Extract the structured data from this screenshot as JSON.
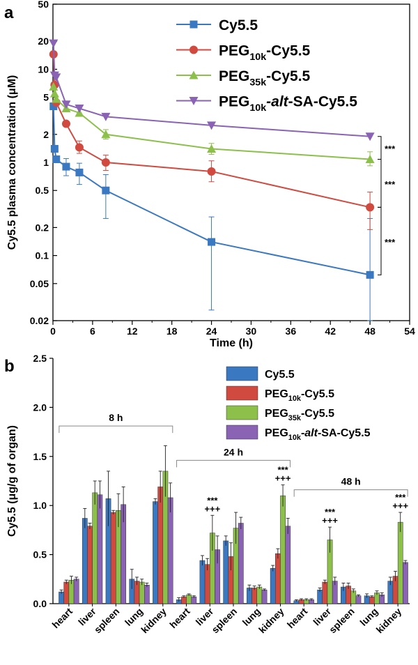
{
  "colors": {
    "cy55": "#3a78c2",
    "peg10k": "#d04a3f",
    "peg35k": "#8cc04a",
    "alt": "#8a63b4"
  },
  "panel_a": {
    "label": "a"
  },
  "panel_b": {
    "label": "b"
  },
  "chart_data": [
    {
      "type": "line",
      "panel": "a",
      "xlabel": "Time (h)",
      "ylabel": "Cy5.5 plasma concentration (μM)",
      "xlim": [
        0,
        54
      ],
      "ylim": [
        0.02,
        50
      ],
      "yscale": "log",
      "xticks": [
        0,
        6,
        12,
        18,
        24,
        30,
        36,
        42,
        48,
        54
      ],
      "yticks": [
        0.02,
        0.05,
        0.1,
        0.2,
        0.5,
        1,
        2,
        5,
        10,
        20,
        50
      ],
      "ytick_labels": [
        "0.02",
        "0.05",
        "0.1",
        "0.2",
        "0.5",
        "1",
        "2",
        "5",
        "10",
        "20",
        "50"
      ],
      "legend_position": "top-right",
      "legend": [
        {
          "key": "cy55",
          "base": "Cy5.5",
          "sub": "",
          "italic": "",
          "rest": ""
        },
        {
          "key": "peg10k",
          "base": "PEG",
          "sub": "10k",
          "italic": "",
          "rest": "-Cy5.5"
        },
        {
          "key": "peg35k",
          "base": "PEG",
          "sub": "35k",
          "italic": "",
          "rest": "-Cy5.5"
        },
        {
          "key": "alt",
          "base": "PEG",
          "sub": "10k",
          "italic": "-alt",
          "rest": "-SA-Cy5.5"
        }
      ],
      "series": [
        {
          "key": "cy55",
          "marker": "square",
          "x": [
            0.083,
            0.25,
            0.5,
            2,
            4,
            8,
            24,
            48
          ],
          "y": [
            4.0,
            1.4,
            1.08,
            0.9,
            0.78,
            0.5,
            0.14,
            0.062
          ],
          "err_lo": [
            0,
            0,
            0,
            0.72,
            0.58,
            0.25,
            0.026,
            0.02
          ],
          "err_hi": [
            0,
            0,
            0,
            1.1,
            0.98,
            0.74,
            0.26,
            0.25
          ]
        },
        {
          "key": "peg10k",
          "marker": "circle",
          "x": [
            0.083,
            0.25,
            0.5,
            2,
            4,
            8,
            24,
            48
          ],
          "y": [
            14.5,
            6.8,
            4.4,
            2.6,
            1.45,
            1.0,
            0.8,
            0.33
          ],
          "err_lo": [
            0,
            0,
            0,
            0,
            1.25,
            0.82,
            0.62,
            0.19
          ],
          "err_hi": [
            0,
            0,
            0,
            0,
            1.7,
            1.2,
            1.04,
            0.48
          ]
        },
        {
          "key": "peg35k",
          "marker": "triangle-up",
          "x": [
            0.083,
            0.25,
            0.5,
            2,
            4,
            8,
            24,
            48
          ],
          "y": [
            6.5,
            5.5,
            4.8,
            3.8,
            3.4,
            2.0,
            1.4,
            1.08
          ],
          "err_lo": [
            0,
            0,
            0,
            0,
            0,
            1.78,
            1.22,
            0.92
          ],
          "err_hi": [
            0,
            0,
            0,
            0,
            0,
            2.25,
            1.6,
            1.3
          ]
        },
        {
          "key": "alt",
          "marker": "triangle-down",
          "x": [
            0.083,
            0.25,
            0.5,
            2,
            4,
            8,
            24,
            48
          ],
          "y": [
            19,
            8.6,
            8.2,
            4.2,
            3.8,
            3.1,
            2.5,
            1.9
          ],
          "err_lo": [
            0,
            0,
            0,
            0,
            0,
            0,
            0,
            0
          ],
          "err_hi": [
            0,
            0,
            0,
            0,
            0,
            0,
            0,
            0
          ]
        }
      ],
      "significance": [
        {
          "from": 1.9,
          "to": 1.08,
          "label": "***"
        },
        {
          "from": 1.08,
          "to": 0.33,
          "label": "***"
        },
        {
          "from": 0.33,
          "to": 0.062,
          "label": "***"
        }
      ]
    },
    {
      "type": "bar",
      "panel": "b",
      "ylabel": "Cy5.5 (μg/g of organ)",
      "ylim": [
        0,
        2.5
      ],
      "yticks": [
        0.0,
        0.5,
        1.0,
        1.5,
        2.0,
        2.5
      ],
      "ytick_labels": [
        "0.0",
        "0.5",
        "1.0",
        "1.5",
        "2.0",
        "2.5"
      ],
      "categories": [
        "heart",
        "liver",
        "spleen",
        "lung",
        "kidney",
        "heart",
        "liver",
        "spleen",
        "lung",
        "kidney",
        "heart",
        "liver",
        "spleen",
        "lung",
        "kidney"
      ],
      "legend_position": "top-right",
      "legend": [
        {
          "key": "cy55",
          "base": "Cy5.5",
          "sub": "",
          "italic": "",
          "rest": ""
        },
        {
          "key": "peg10k",
          "base": "PEG",
          "sub": "10k",
          "italic": "",
          "rest": "-Cy5.5"
        },
        {
          "key": "peg35k",
          "base": "PEG",
          "sub": "35k",
          "italic": "",
          "rest": "-Cy5.5"
        },
        {
          "key": "alt",
          "base": "PEG",
          "sub": "10k",
          "italic": "-alt",
          "rest": "-SA-Cy5.5"
        }
      ],
      "groups": [
        {
          "label": "8 h",
          "first": 0,
          "last": 4,
          "bracket_y": 1.81
        },
        {
          "label": "24 h",
          "first": 5,
          "last": 9,
          "bracket_y": 1.46
        },
        {
          "label": "48 h",
          "first": 10,
          "last": 14,
          "bracket_y": 1.16
        }
      ],
      "series": [
        {
          "key": "cy55",
          "values": [
            0.12,
            0.87,
            1.07,
            0.25,
            1.04,
            0.04,
            0.44,
            0.64,
            0.16,
            0.36,
            0.03,
            0.14,
            0.17,
            0.08,
            0.23
          ],
          "errors": [
            0.02,
            0.1,
            0.28,
            0.1,
            0.03,
            0.02,
            0.05,
            0.05,
            0.03,
            0.03,
            0.01,
            0.02,
            0.04,
            0.02,
            0.04
          ]
        },
        {
          "key": "peg10k",
          "values": [
            0.22,
            0.79,
            0.93,
            0.23,
            1.19,
            0.07,
            0.4,
            0.48,
            0.16,
            0.51,
            0.04,
            0.22,
            0.18,
            0.07,
            0.28
          ],
          "errors": [
            0.02,
            0.03,
            0.02,
            0.04,
            0.16,
            0.01,
            0.06,
            0.14,
            0.02,
            0.05,
            0.01,
            0.02,
            0.03,
            0.01,
            0.05
          ]
        },
        {
          "key": "peg35k",
          "values": [
            0.24,
            1.13,
            0.95,
            0.22,
            1.35,
            0.09,
            0.72,
            0.77,
            0.17,
            1.1,
            0.04,
            0.65,
            0.13,
            0.11,
            0.83
          ],
          "errors": [
            0.04,
            0.12,
            0.17,
            0.03,
            0.26,
            0.01,
            0.18,
            0.16,
            0.02,
            0.11,
            0.01,
            0.13,
            0.02,
            0.02,
            0.1
          ]
        },
        {
          "key": "alt",
          "values": [
            0.25,
            1.11,
            1.01,
            0.19,
            1.08,
            0.07,
            0.55,
            0.82,
            0.14,
            0.79,
            0.04,
            0.23,
            0.08,
            0.09,
            0.42
          ],
          "errors": [
            0.02,
            0.14,
            0.18,
            0.02,
            0.15,
            0.01,
            0.14,
            0.06,
            0.01,
            0.08,
            0.01,
            0.04,
            0.01,
            0.02,
            0.02
          ]
        }
      ],
      "annotations": [
        {
          "category": 6,
          "series": "peg35k",
          "lines": [
            "***",
            "+++"
          ]
        },
        {
          "category": 9,
          "series": "peg35k",
          "lines": [
            "***",
            "+++"
          ]
        },
        {
          "category": 11,
          "series": "peg35k",
          "lines": [
            "***",
            "+++"
          ]
        },
        {
          "category": 14,
          "series": "peg35k",
          "lines": [
            "***",
            "+++"
          ]
        }
      ]
    }
  ]
}
